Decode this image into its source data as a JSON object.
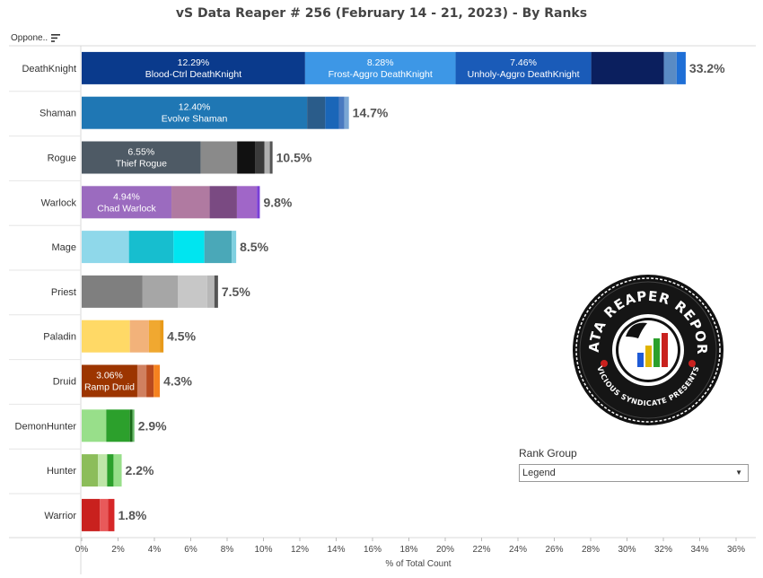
{
  "title": "vS Data Reaper #  256 (February 14 - 21, 2023) - By Ranks",
  "sort_header": {
    "label": "Oppone..",
    "icon": "sort-icon"
  },
  "filter": {
    "title": "Rank Group",
    "selected": "Legend",
    "icon": "chevron-down-icon"
  },
  "logo": {
    "top_text": "DATA REAPER REPORT",
    "bottom_text": "VICIOUS SYNDICATE PRESENTS"
  },
  "chart_data": {
    "type": "bar",
    "orientation": "horizontal",
    "stacked": true,
    "xlabel": "% of Total Count",
    "ylabel": "",
    "xlim": [
      0,
      37
    ],
    "x_ticks": [
      "0%",
      "2%",
      "4%",
      "6%",
      "8%",
      "10%",
      "12%",
      "14%",
      "16%",
      "18%",
      "20%",
      "22%",
      "24%",
      "26%",
      "28%",
      "30%",
      "32%",
      "34%",
      "36%"
    ],
    "grid": false,
    "categories": [
      "DeathKnight",
      "Shaman",
      "Rogue",
      "Warlock",
      "Mage",
      "Priest",
      "Paladin",
      "Druid",
      "DemonHunter",
      "Hunter",
      "Warrior"
    ],
    "totals": [
      "33.2%",
      "14.7%",
      "10.5%",
      "9.8%",
      "8.5%",
      "7.5%",
      "4.5%",
      "4.3%",
      "2.9%",
      "2.2%",
      "1.8%"
    ],
    "bars": [
      {
        "class": "DeathKnight",
        "segments": [
          {
            "value": 12.29,
            "color": "#0a3a8c",
            "label": "12.29%",
            "archetype": "Blood-Ctrl DeathKnight"
          },
          {
            "value": 8.28,
            "color": "#3d97e6",
            "label": "8.28%",
            "archetype": "Frost-Aggro DeathKnight"
          },
          {
            "value": 7.46,
            "color": "#1a5bb8",
            "label": "7.46%",
            "archetype": "Unholy-Aggro DeathKnight"
          },
          {
            "value": 4.0,
            "color": "#0b1f5e"
          },
          {
            "value": 0.7,
            "color": "#5a8bc4"
          },
          {
            "value": 0.5,
            "color": "#1f6fd6"
          }
        ]
      },
      {
        "class": "Shaman",
        "segments": [
          {
            "value": 12.4,
            "color": "#1f77b4",
            "label": "12.40%",
            "archetype": "Evolve Shaman"
          },
          {
            "value": 1.0,
            "color": "#2a5c8a"
          },
          {
            "value": 0.75,
            "color": "#1a66b8"
          },
          {
            "value": 0.3,
            "color": "#4a7ac0"
          },
          {
            "value": 0.25,
            "color": "#7aa6d4"
          }
        ]
      },
      {
        "class": "Rogue",
        "segments": [
          {
            "value": 6.55,
            "color": "#4e5a65",
            "label": "6.55%",
            "archetype": "Thief Rogue"
          },
          {
            "value": 2.0,
            "color": "#8a8a8a"
          },
          {
            "value": 1.0,
            "color": "#111111"
          },
          {
            "value": 0.5,
            "color": "#3a3a3a"
          },
          {
            "value": 0.3,
            "color": "#b0b0b0"
          },
          {
            "value": 0.15,
            "color": "#555555"
          }
        ]
      },
      {
        "class": "Warlock",
        "segments": [
          {
            "value": 4.94,
            "color": "#9b6bbf",
            "label": "4.94%",
            "archetype": "Chad Warlock"
          },
          {
            "value": 2.1,
            "color": "#b07aa1"
          },
          {
            "value": 1.5,
            "color": "#7a4a82"
          },
          {
            "value": 1.1,
            "color": "#a066c8"
          },
          {
            "value": 0.16,
            "color": "#7b3fd6"
          }
        ]
      },
      {
        "class": "Mage",
        "segments": [
          {
            "value": 2.6,
            "color": "#8fd8ea"
          },
          {
            "value": 2.45,
            "color": "#17becf"
          },
          {
            "value": 1.7,
            "color": "#00e5f0"
          },
          {
            "value": 1.5,
            "color": "#4aa8b8"
          },
          {
            "value": 0.25,
            "color": "#7fd0e0"
          }
        ]
      },
      {
        "class": "Priest",
        "segments": [
          {
            "value": 3.35,
            "color": "#7f7f7f"
          },
          {
            "value": 1.95,
            "color": "#a6a6a6"
          },
          {
            "value": 1.6,
            "color": "#c7c7c7"
          },
          {
            "value": 0.4,
            "color": "#b8b8b8"
          },
          {
            "value": 0.2,
            "color": "#555555"
          }
        ]
      },
      {
        "class": "Paladin",
        "segments": [
          {
            "value": 2.65,
            "color": "#ffd966"
          },
          {
            "value": 1.05,
            "color": "#f2b27a"
          },
          {
            "value": 0.6,
            "color": "#f0a830"
          },
          {
            "value": 0.2,
            "color": "#e89a1a"
          }
        ]
      },
      {
        "class": "Druid",
        "segments": [
          {
            "value": 3.06,
            "color": "#9c3500",
            "label": "3.06%",
            "archetype": "Ramp Druid"
          },
          {
            "value": 0.5,
            "color": "#d08060"
          },
          {
            "value": 0.4,
            "color": "#b84a1e"
          },
          {
            "value": 0.34,
            "color": "#f5821f"
          }
        ]
      },
      {
        "class": "DemonHunter",
        "segments": [
          {
            "value": 1.35,
            "color": "#98df8a"
          },
          {
            "value": 1.3,
            "color": "#2ca02c"
          },
          {
            "value": 0.15,
            "color": "#1a6b1a"
          },
          {
            "value": 0.1,
            "color": "#6abf6a"
          }
        ]
      },
      {
        "class": "Hunter",
        "segments": [
          {
            "value": 0.9,
            "color": "#8cbd5a"
          },
          {
            "value": 0.5,
            "color": "#bfe6a8"
          },
          {
            "value": 0.35,
            "color": "#2ca02c"
          },
          {
            "value": 0.45,
            "color": "#98df8a"
          }
        ]
      },
      {
        "class": "Warrior",
        "segments": [
          {
            "value": 1.0,
            "color": "#c9211e"
          },
          {
            "value": 0.45,
            "color": "#e8595a"
          },
          {
            "value": 0.35,
            "color": "#d62728"
          }
        ]
      }
    ]
  }
}
